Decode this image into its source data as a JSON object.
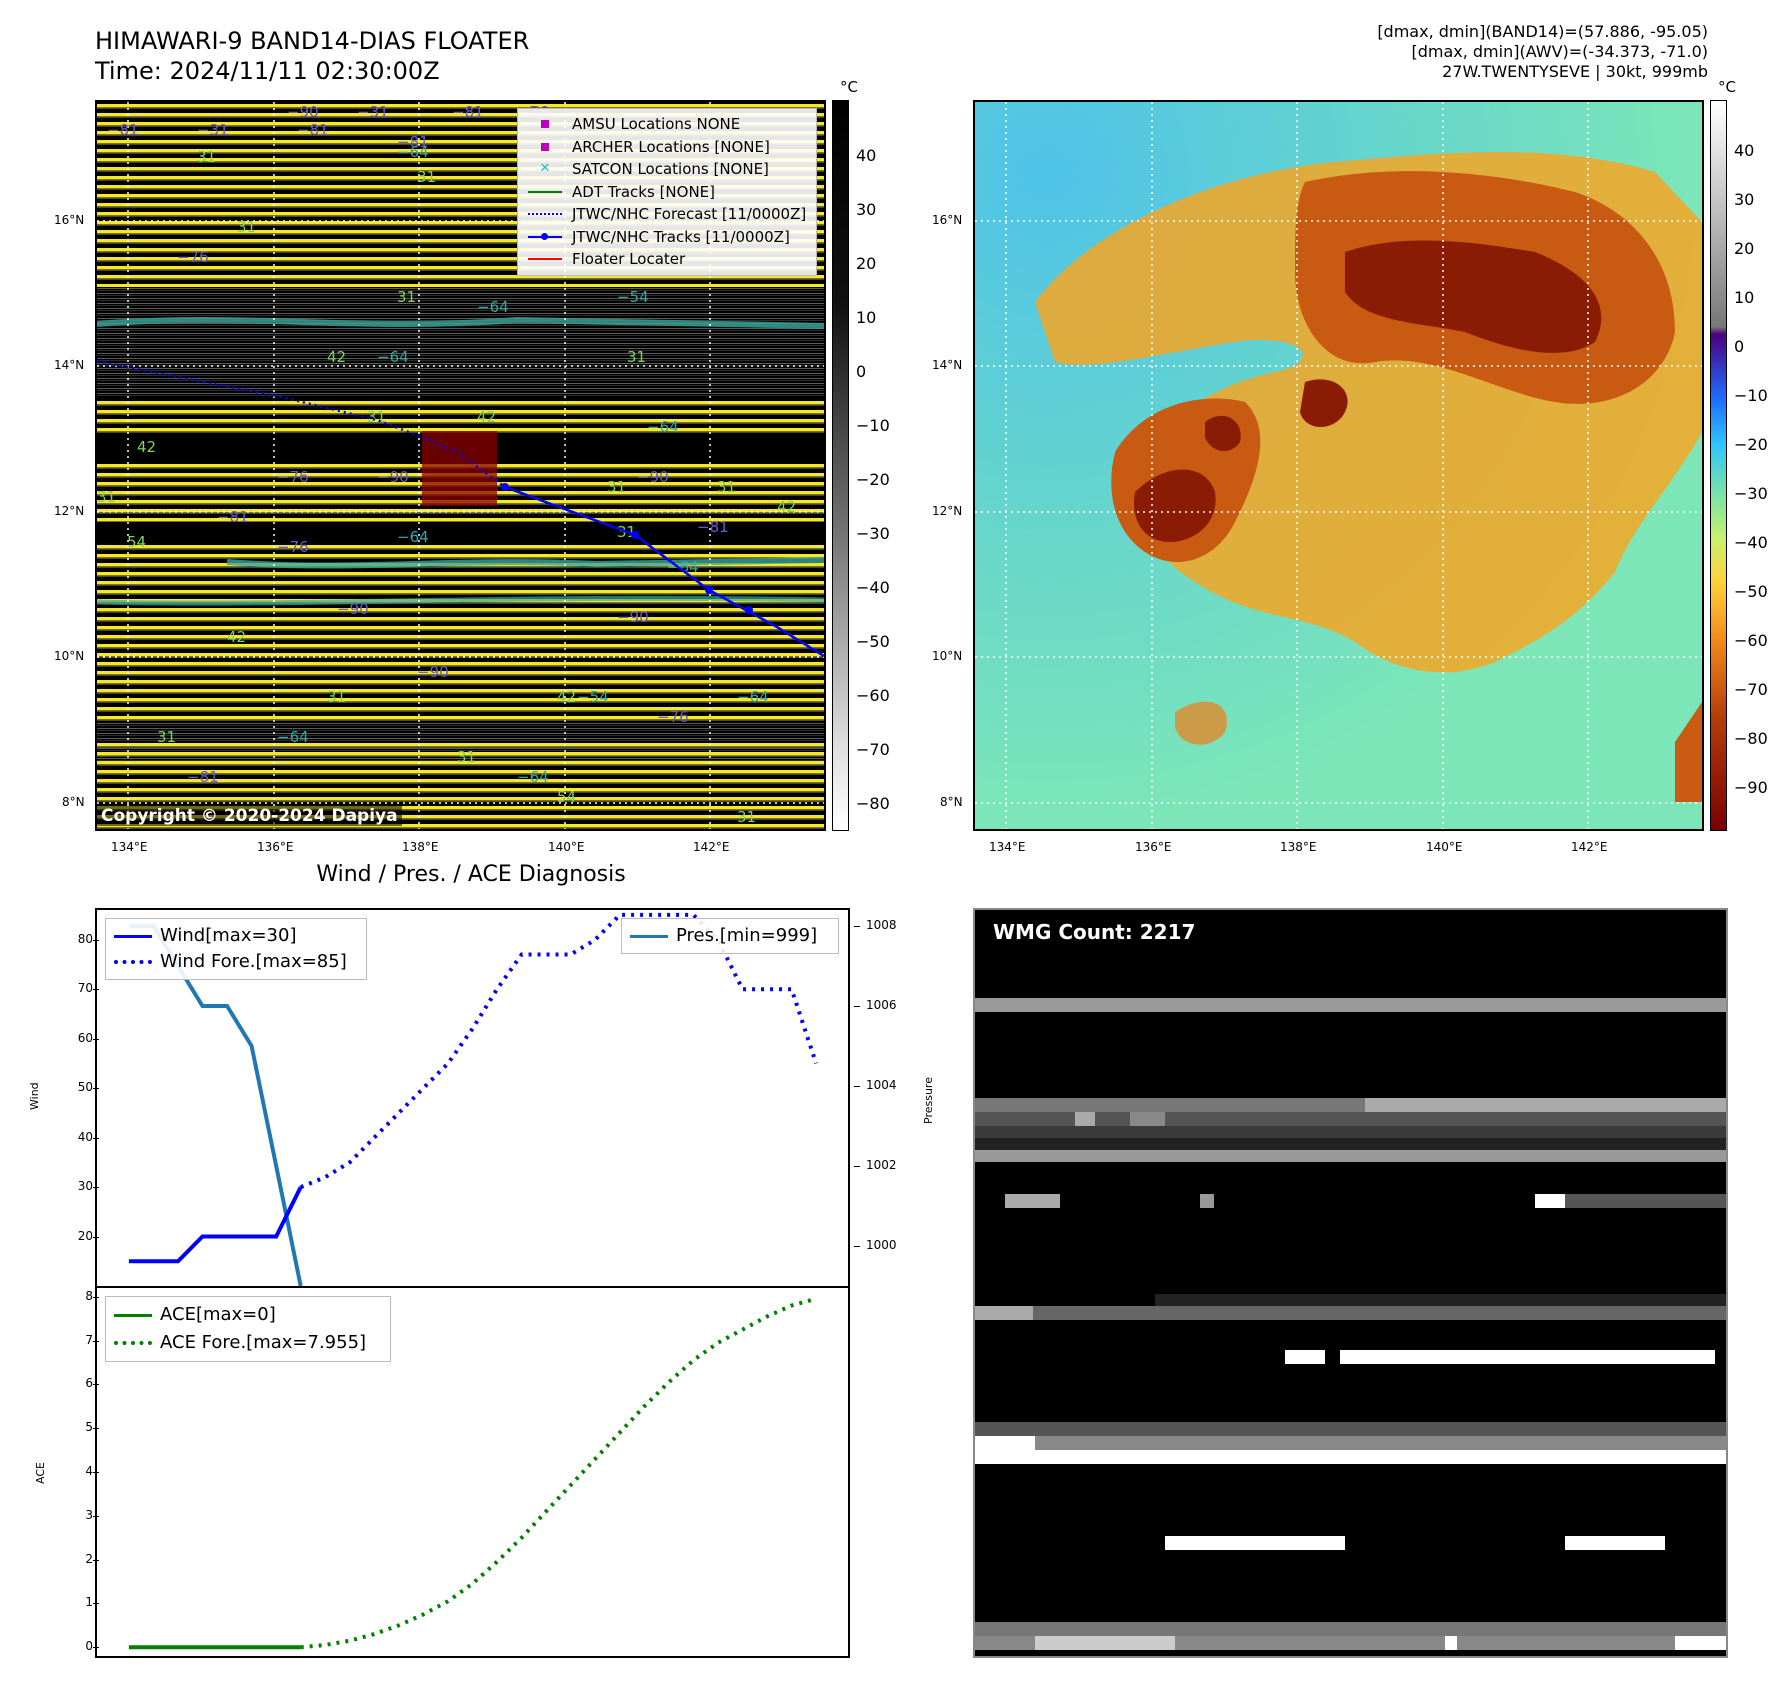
{
  "header": {
    "title_line1": "HIMAWARI-9 BAND14-DIAS FLOATER",
    "title_line2": "Time: 2024/11/11 02:30:00Z",
    "info_line1": "[dmax, dmin](BAND14)=(57.886, -95.05)",
    "info_line2": "[dmax, dmin](AWV)=(-34.373, -71.0)",
    "info_line3": "27W.TWENTYSEVE | 30kt, 999mb"
  },
  "map_axes": {
    "lon_ticks": [
      "134°E",
      "136°E",
      "138°E",
      "140°E",
      "142°E"
    ],
    "lat_ticks": [
      "16°N",
      "14°N",
      "12°N",
      "10°N",
      "8°N"
    ]
  },
  "left_colorbar": {
    "unit": "°C",
    "ticks": [
      "40",
      "30",
      "20",
      "10",
      "0",
      "−10",
      "−20",
      "−30",
      "−40",
      "−50",
      "−60",
      "−70",
      "−80"
    ]
  },
  "right_colorbar": {
    "unit": "°C",
    "ticks": [
      "40",
      "30",
      "20",
      "10",
      "0",
      "−10",
      "−20",
      "−30",
      "−40",
      "−50",
      "−60",
      "−70",
      "−80",
      "−90"
    ]
  },
  "legend": {
    "items": [
      {
        "label": "AMSU Locations NONE",
        "color": "#bf00bf",
        "marker": "square"
      },
      {
        "label": "ARCHER Locations [NONE]",
        "color": "#bf00bf",
        "marker": "square"
      },
      {
        "label": "SATCON Locations [NONE]",
        "color": "#17becf",
        "marker": "x"
      },
      {
        "label": "ADT Tracks [NONE]",
        "color": "#008000",
        "marker": "line"
      },
      {
        "label": "JTWC/NHC Forecast [11/0000Z]",
        "color": "#0000ff",
        "marker": "dotted"
      },
      {
        "label": "JTWC/NHC Tracks [11/0000Z]",
        "color": "#0000ff",
        "marker": "line-dot"
      },
      {
        "label": "Floater Locater",
        "color": "#ff0000",
        "marker": "line"
      }
    ]
  },
  "copyright": "Copyright © 2020-2024 Dapiya",
  "diagnosis": {
    "title": "Wind / Pres. / ACE Diagnosis",
    "wind_legend": [
      "Wind[max=30]",
      "Wind Fore.[max=85]"
    ],
    "pres_legend": "Pres.[min=999]",
    "ace_legend": [
      "ACE[max=0]",
      "ACE Fore.[max=7.955]"
    ],
    "wind_ylabel": "Wind",
    "pres_ylabel": "Pressure",
    "ace_ylabel": "ACE",
    "wind_ticks": [
      "80",
      "70",
      "60",
      "50",
      "40",
      "30",
      "20"
    ],
    "pres_ticks": [
      "1008",
      "1006",
      "1004",
      "1002",
      "1000"
    ],
    "ace_ticks": [
      "8",
      "7",
      "6",
      "5",
      "4",
      "3",
      "2",
      "1",
      "0"
    ]
  },
  "wmg": {
    "label": "WMG Count: 2217"
  },
  "colors": {
    "wind": "#0000ff",
    "pressure": "#1f77b4",
    "ace": "#008000",
    "track": "#0000ff"
  },
  "chart_data": [
    {
      "type": "line",
      "title": "Wind / Pres. / ACE Diagnosis",
      "ylabel": "Wind",
      "ylim": [
        10,
        86
      ],
      "series": [
        {
          "name": "Wind[max=30]",
          "x": [
            0,
            1,
            2,
            3,
            4,
            5,
            6,
            7
          ],
          "values": [
            15,
            15,
            15,
            20,
            20,
            20,
            20,
            30
          ]
        },
        {
          "name": "Wind Fore.[max=85]",
          "x": [
            7,
            8,
            9,
            10,
            11,
            12,
            13,
            14,
            15,
            16,
            17,
            18,
            19,
            20,
            21,
            22,
            23,
            24,
            25,
            26,
            27,
            28
          ],
          "values": [
            30,
            32,
            35,
            40,
            45,
            50,
            55,
            62,
            70,
            77,
            77,
            77,
            80,
            85,
            85,
            85,
            85,
            80,
            70,
            70,
            70,
            55
          ]
        }
      ]
    },
    {
      "type": "line",
      "ylabel": "Pressure",
      "ylim": [
        999,
        1008.4
      ],
      "series": [
        {
          "name": "Pres.[min=999]",
          "x": [
            0,
            1,
            2,
            3,
            4,
            5,
            6,
            7
          ],
          "values": [
            1008,
            1008,
            1007,
            1006,
            1006,
            1005,
            1002,
            999
          ]
        }
      ]
    },
    {
      "type": "line",
      "ylabel": "ACE",
      "ylim": [
        -0.2,
        8.2
      ],
      "series": [
        {
          "name": "ACE[max=0]",
          "x": [
            0,
            1,
            2,
            3,
            4,
            5,
            6,
            7
          ],
          "values": [
            0,
            0,
            0,
            0,
            0,
            0,
            0,
            0
          ]
        },
        {
          "name": "ACE Fore.[max=7.955]",
          "x": [
            7,
            8,
            9,
            10,
            11,
            12,
            13,
            14,
            15,
            16,
            17,
            18,
            19,
            20,
            21,
            22,
            23,
            24,
            25,
            26,
            27,
            28
          ],
          "values": [
            0,
            0.05,
            0.15,
            0.3,
            0.5,
            0.75,
            1.05,
            1.45,
            1.95,
            2.5,
            3.1,
            3.7,
            4.3,
            4.9,
            5.5,
            6.05,
            6.55,
            6.95,
            7.25,
            7.55,
            7.8,
            7.955
          ]
        }
      ]
    }
  ]
}
